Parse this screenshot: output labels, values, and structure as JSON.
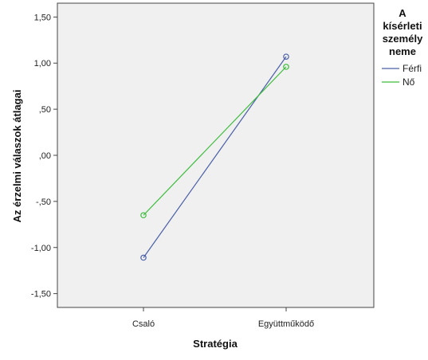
{
  "chart_data": {
    "type": "line",
    "title": "",
    "xlabel": "Stratégia",
    "ylabel": "Az érzelmi válaszok átlagai",
    "categories": [
      "Csaló",
      "Együttműködő"
    ],
    "ylim": [
      -1.65,
      1.65
    ],
    "yticks": [
      1.5,
      1.0,
      0.5,
      0.0,
      -0.5,
      -1.0,
      -1.5
    ],
    "ytick_labels": [
      "1,50",
      "1,00",
      ",50",
      ",00",
      "-,50",
      "-1,00",
      "-1,50"
    ],
    "grid": false,
    "legend": {
      "placement": "right",
      "title_lines": [
        "A",
        "kísérleti",
        "személy",
        "neme"
      ]
    },
    "series": [
      {
        "name": "Férfi",
        "values": [
          -1.11,
          1.07
        ],
        "color": "#4a5fa8"
      },
      {
        "name": "Nő",
        "values": [
          -0.65,
          0.96
        ],
        "color": "#3cbc3c"
      }
    ],
    "plot_background": "#f0f0f0"
  }
}
